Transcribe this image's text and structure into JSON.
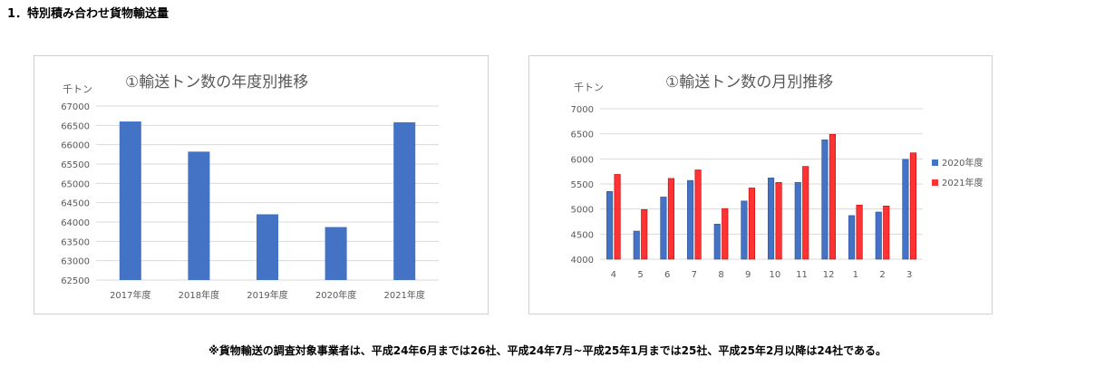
{
  "heading": "1．特別積み合わせ貨物輸送量",
  "footnote": "※貨物輸送の調査対象事業者は、平成24年6月までは26社、平成24年7月~平成25年1月までは25社、平成25年2月以降は24社である。",
  "colors": {
    "blue": "#4472c4",
    "red": "#ff3333",
    "grid": "#d9d9d9"
  },
  "chart_data": [
    {
      "type": "bar",
      "title": "①輸送トン数の年度別推移",
      "unit_label": "千トン",
      "categories": [
        "2017年度",
        "2018年度",
        "2019年度",
        "2020年度",
        "2021年度"
      ],
      "values": [
        66600,
        65820,
        64200,
        63870,
        66580
      ],
      "ylim": [
        62500,
        67000
      ],
      "yticks": [
        "62500",
        "63000",
        "63500",
        "64000",
        "64500",
        "65000",
        "65500",
        "66000",
        "66500",
        "67000"
      ],
      "grid": true
    },
    {
      "type": "bar",
      "title": "①輸送トン数の月別推移",
      "unit_label": "千トン",
      "categories": [
        "4",
        "5",
        "6",
        "7",
        "8",
        "9",
        "10",
        "11",
        "12",
        "1",
        "2",
        "3"
      ],
      "series": [
        {
          "name": "2020年度",
          "values": [
            5350,
            4560,
            5240,
            5570,
            4700,
            5160,
            5620,
            5530,
            6380,
            4870,
            4940,
            5990
          ]
        },
        {
          "name": "2021年度",
          "values": [
            5690,
            4990,
            5610,
            5780,
            5010,
            5420,
            5530,
            5850,
            6490,
            5080,
            5060,
            6120
          ]
        }
      ],
      "ylim": [
        4000,
        7000
      ],
      "yticks": [
        "4000",
        "4500",
        "5000",
        "5500",
        "6000",
        "6500",
        "7000"
      ],
      "legend": "right",
      "grid": true
    }
  ]
}
